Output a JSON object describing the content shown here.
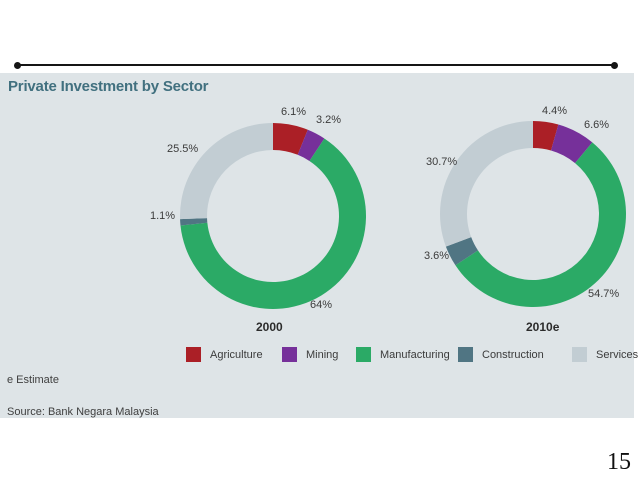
{
  "header": {
    "title": "Private Investment by Sector"
  },
  "chart_data": [
    {
      "type": "pie",
      "subtype": "donut",
      "title": "2000",
      "categories": [
        "Agriculture",
        "Mining",
        "Manufacturing",
        "Construction",
        "Services"
      ],
      "values": [
        6.1,
        3.2,
        64,
        1.1,
        25.5
      ],
      "display_labels": [
        "6.1%",
        "3.2%",
        "64%",
        "1.1%",
        "25.5%"
      ],
      "unit": "percent",
      "start_angle_deg": 0,
      "direction": "clockwise"
    },
    {
      "type": "pie",
      "subtype": "donut",
      "title": "2010e",
      "categories": [
        "Agriculture",
        "Mining",
        "Manufacturing",
        "Construction",
        "Services"
      ],
      "values": [
        4.4,
        6.6,
        54.7,
        3.6,
        30.7
      ],
      "display_labels": [
        "4.4%",
        "6.6%",
        "54.7%",
        "3.6%",
        "30.7%"
      ],
      "unit": "percent",
      "start_angle_deg": 0,
      "direction": "clockwise"
    }
  ],
  "legend": {
    "position": "bottom",
    "items": [
      {
        "label": "Agriculture",
        "color": "#ab1f26"
      },
      {
        "label": "Mining",
        "color": "#76309a"
      },
      {
        "label": "Manufacturing",
        "color": "#2baa66"
      },
      {
        "label": "Construction",
        "color": "#507583"
      },
      {
        "label": "Services",
        "color": "#c2cdd3"
      }
    ]
  },
  "footnotes": {
    "estimate": "e Estimate",
    "source": "Source: Bank Negara Malaysia"
  },
  "page_number": "15",
  "colors": {
    "panel_background": "#dee4e7",
    "title_text": "#41707f",
    "label_text": "#3b3b3b",
    "divider": "#151515"
  }
}
